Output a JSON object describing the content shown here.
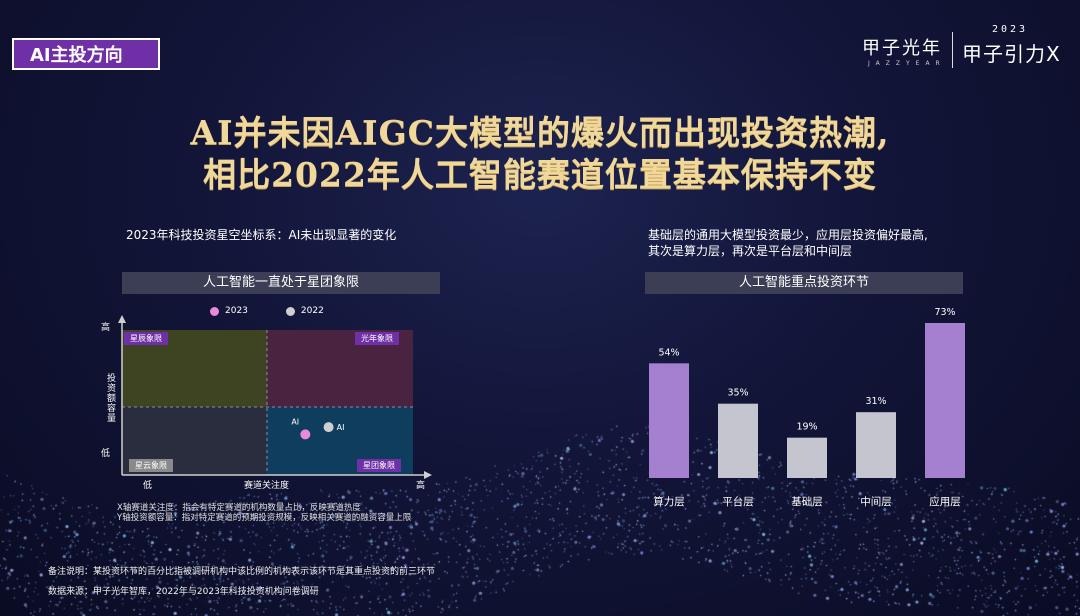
{
  "tag": "AI主投方向",
  "logo": {
    "main": "甲子光年",
    "sub": "JAZZYEAR",
    "year": "2023",
    "event": "甲子引力X"
  },
  "headline": [
    "AI并未因AIGC大模型的爆火而出现投资热潮,",
    "相比2022年人工智能赛道位置基本保持不变"
  ],
  "left": {
    "caption": "2023年科技投资星空坐标系：AI未出现显著的变化",
    "panel_title": "人工智能一直处于星团象限",
    "legend": [
      {
        "label": "2023",
        "color": "#e88ad8"
      },
      {
        "label": "2022",
        "color": "#cfcfcf"
      }
    ],
    "y_axis": {
      "high": "高",
      "title": "投资额容量",
      "low": "低"
    },
    "x_axis": {
      "low": "低",
      "title": "赛道关注度",
      "high": "高"
    },
    "quadrants": [
      "星辰象限",
      "光年象限",
      "星云象限",
      "星团象限"
    ],
    "notes": [
      "X轴赛道关注度：指会有特定赛道的机构数量占比，反映赛道热度",
      "Y轴投资额容量：指对特定赛道的预期投资规模，反映相关赛道的融资容量上限"
    ]
  },
  "right": {
    "caption": [
      "基础层的通用大模型投资最少，应用层投资偏好最高,",
      "其次是算力层，再次是平台层和中间层"
    ],
    "panel_title": "人工智能重点投资环节"
  },
  "footnotes": [
    "备注说明：某投资环节的百分比指被调研机构中该比例的机构表示该环节是其重点投资的前三环节",
    "数据来源：甲子光年智库，2022年与2023年科技投资机构问卷调研"
  ],
  "chart_data": [
    {
      "type": "scatter",
      "title": "人工智能一直处于星团象限",
      "xlabel": "赛道关注度",
      "ylabel": "投资额容量",
      "series": [
        {
          "name": "2023",
          "color": "#e88ad8",
          "points": [
            {
              "label": "AI",
              "x": 0.63,
              "y": 0.28
            }
          ]
        },
        {
          "name": "2022",
          "color": "#cfcfcf",
          "points": [
            {
              "label": "AI",
              "x": 0.71,
              "y": 0.33
            }
          ]
        }
      ]
    },
    {
      "type": "bar",
      "title": "人工智能重点投资环节",
      "categories": [
        "算力层",
        "平台层",
        "基础层",
        "中间层",
        "应用层"
      ],
      "values": [
        54,
        35,
        19,
        31,
        73
      ],
      "labels": [
        "54%",
        "35%",
        "19%",
        "31%",
        "73%"
      ],
      "colors": [
        "#a57fd0",
        "#c5c5d0",
        "#c5c5d0",
        "#c5c5d0",
        "#a57fd0"
      ],
      "ylim": [
        0,
        73
      ]
    }
  ]
}
